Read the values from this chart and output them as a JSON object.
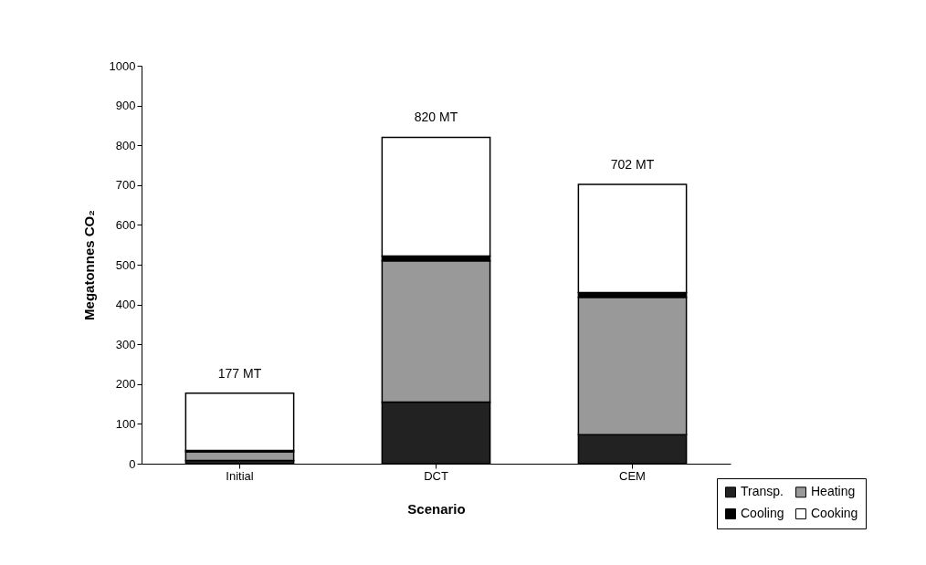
{
  "chart_data": {
    "type": "bar",
    "stacked": true,
    "xlabel": "Scenario",
    "ylabel": "Megatonnes CO₂",
    "categories": [
      "Initial",
      "DCT",
      "CEM"
    ],
    "series": [
      {
        "name": "Transp.",
        "color": "#222222",
        "values": [
          8,
          155,
          73
        ]
      },
      {
        "name": "Heating",
        "color": "#999999",
        "values": [
          22,
          355,
          345
        ]
      },
      {
        "name": "Cooling",
        "color": "#000000",
        "values": [
          3,
          12,
          12
        ]
      },
      {
        "name": "Cooking",
        "color": "#ffffff",
        "values": [
          144,
          298,
          272
        ]
      }
    ],
    "totals": [
      "177 MT",
      "820 MT",
      "702 MT"
    ],
    "ylim": [
      0,
      1000
    ],
    "yticks": [
      0,
      100,
      200,
      300,
      400,
      500,
      600,
      700,
      800,
      900,
      1000
    ],
    "grid": false,
    "legend": "bottom right"
  }
}
